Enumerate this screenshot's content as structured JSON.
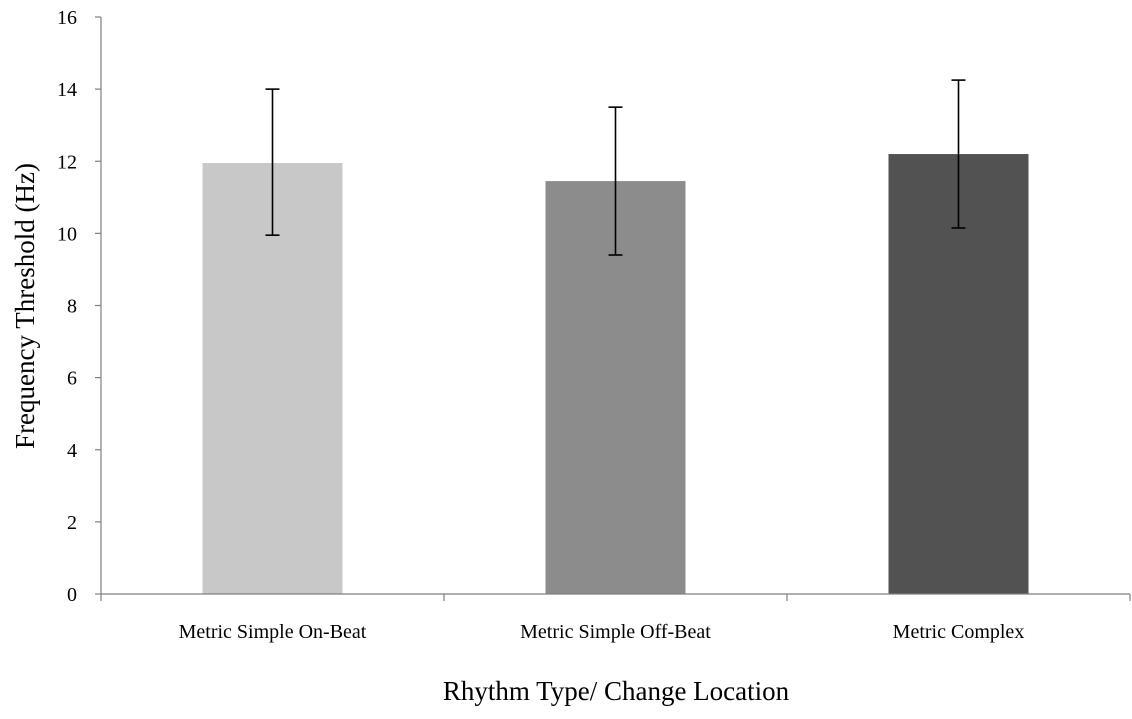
{
  "chart_data": {
    "type": "bar",
    "title": "",
    "xlabel": "Rhythm Type/ Change Location",
    "ylabel": "Frequency Threshold (Hz)",
    "ylim": [
      0,
      16
    ],
    "yticks": [
      0,
      2,
      4,
      6,
      8,
      10,
      12,
      14,
      16
    ],
    "ytick_labels": [
      "0",
      "2",
      "4",
      "6",
      "8",
      "10",
      "12",
      "14",
      "16"
    ],
    "categories": [
      "Metric Simple On-Beat",
      "Metric Simple Off-Beat",
      "Metric Complex"
    ],
    "values": [
      11.95,
      11.45,
      12.2
    ],
    "error_low": [
      9.95,
      9.4,
      10.15
    ],
    "error_high": [
      14.0,
      13.5,
      14.25
    ],
    "colors": [
      "#c8c8c8",
      "#8c8c8c",
      "#525252"
    ],
    "grid": false,
    "legend": "none"
  }
}
